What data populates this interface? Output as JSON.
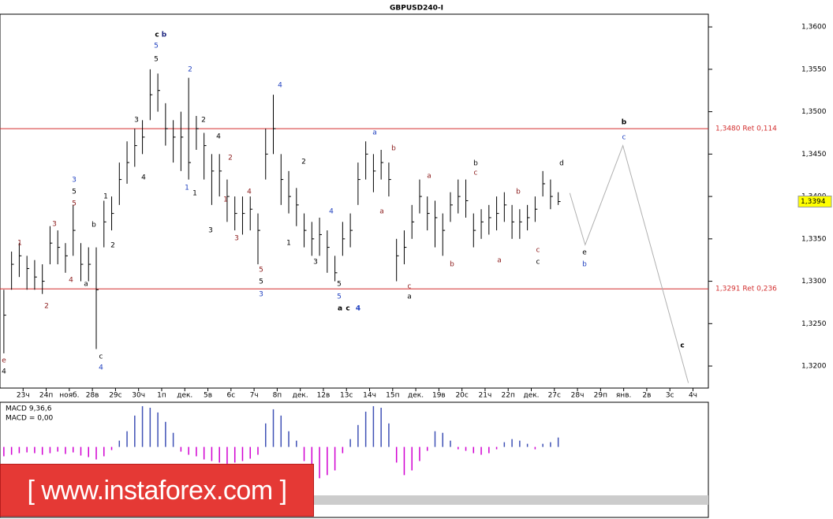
{
  "chart_data": {
    "type": "hlc",
    "title": "GBPUSD240-I",
    "color": "#000000",
    "xlim": [
      -0.5,
      91.5
    ],
    "xticks": [
      {
        "value": 2.5,
        "label": "23ч"
      },
      {
        "value": 5.5,
        "label": "24п"
      },
      {
        "value": 8.5,
        "label": "нояб."
      },
      {
        "value": 11.5,
        "label": "28в"
      },
      {
        "value": 14.5,
        "label": "29с"
      },
      {
        "value": 17.5,
        "label": "30ч"
      },
      {
        "value": 20.5,
        "label": "1п"
      },
      {
        "value": 23.5,
        "label": "дек."
      },
      {
        "value": 26.5,
        "label": "5в"
      },
      {
        "value": 29.5,
        "label": "6с"
      },
      {
        "value": 32.5,
        "label": "7ч"
      },
      {
        "value": 35.5,
        "label": "8п"
      },
      {
        "value": 38.5,
        "label": "дек."
      },
      {
        "value": 41.5,
        "label": "12в"
      },
      {
        "value": 44.5,
        "label": "13с"
      },
      {
        "value": 47.5,
        "label": "14ч"
      },
      {
        "value": 50.5,
        "label": "15п"
      },
      {
        "value": 53.5,
        "label": "дек."
      },
      {
        "value": 56.5,
        "label": "19в"
      },
      {
        "value": 59.5,
        "label": "20с"
      },
      {
        "value": 62.5,
        "label": "21ч"
      },
      {
        "value": 65.5,
        "label": "22п"
      },
      {
        "value": 68.5,
        "label": "дек."
      },
      {
        "value": 71.5,
        "label": "27с"
      },
      {
        "value": 74.5,
        "label": "28ч"
      },
      {
        "value": 77.5,
        "label": "29п"
      },
      {
        "value": 80.5,
        "label": "янв."
      },
      {
        "value": 83.5,
        "label": "2в"
      },
      {
        "value": 86.5,
        "label": "3с"
      },
      {
        "value": 89.5,
        "label": "4ч"
      }
    ],
    "ylim": [
      1.3174,
      1.3615
    ],
    "yticks": [
      {
        "value": 1.32,
        "label": "1,3200"
      },
      {
        "value": 1.325,
        "label": "1,3250"
      },
      {
        "value": 1.33,
        "label": "1,3300"
      },
      {
        "value": 1.335,
        "label": "1,3350"
      },
      {
        "value": 1.34,
        "label": "1,3400"
      },
      {
        "value": 1.345,
        "label": "1,3450"
      },
      {
        "value": 1.35,
        "label": "1,3500"
      },
      {
        "value": 1.355,
        "label": "1,3550"
      },
      {
        "value": 1.36,
        "label": "1,3600"
      }
    ],
    "high": [
      1.329,
      1.3335,
      1.3345,
      1.333,
      1.3325,
      1.332,
      1.3365,
      1.336,
      1.3345,
      1.339,
      1.3345,
      1.334,
      1.334,
      1.3395,
      1.34,
      1.344,
      1.3465,
      1.348,
      1.349,
      1.355,
      1.3545,
      1.351,
      1.349,
      1.35,
      1.354,
      1.3495,
      1.3475,
      1.345,
      1.345,
      1.342,
      1.34,
      1.34,
      1.34,
      1.338,
      1.348,
      1.352,
      1.345,
      1.343,
      1.341,
      1.338,
      1.337,
      1.3375,
      1.336,
      1.333,
      1.337,
      1.338,
      1.344,
      1.3465,
      1.345,
      1.3455,
      1.344,
      1.335,
      1.336,
      1.339,
      1.342,
      1.34,
      1.3395,
      1.338,
      1.3405,
      1.342,
      1.342,
      1.338,
      1.3385,
      1.339,
      1.34,
      1.3405,
      1.339,
      1.3385,
      1.339,
      1.34,
      1.343,
      1.342,
      1.3405
    ],
    "low": [
      1.3215,
      1.329,
      1.3305,
      1.329,
      1.329,
      1.3285,
      1.332,
      1.332,
      1.331,
      1.333,
      1.33,
      1.33,
      1.322,
      1.334,
      1.336,
      1.339,
      1.3415,
      1.3435,
      1.345,
      1.349,
      1.35,
      1.346,
      1.344,
      1.343,
      1.342,
      1.3455,
      1.342,
      1.339,
      1.34,
      1.337,
      1.336,
      1.3355,
      1.336,
      1.332,
      1.342,
      1.345,
      1.339,
      1.338,
      1.3365,
      1.334,
      1.333,
      1.333,
      1.331,
      1.33,
      1.333,
      1.334,
      1.339,
      1.342,
      1.3405,
      1.342,
      1.34,
      1.33,
      1.332,
      1.335,
      1.338,
      1.336,
      1.334,
      1.333,
      1.337,
      1.338,
      1.3375,
      1.334,
      1.335,
      1.3355,
      1.336,
      1.337,
      1.335,
      1.335,
      1.336,
      1.337,
      1.34,
      1.3385,
      1.339
    ],
    "close": [
      1.326,
      1.332,
      1.333,
      1.3315,
      1.3305,
      1.33,
      1.3345,
      1.334,
      1.333,
      1.336,
      1.332,
      1.332,
      1.329,
      1.337,
      1.338,
      1.342,
      1.344,
      1.346,
      1.347,
      1.352,
      1.3525,
      1.348,
      1.347,
      1.347,
      1.344,
      1.348,
      1.346,
      1.343,
      1.343,
      1.34,
      1.338,
      1.338,
      1.3385,
      1.336,
      1.345,
      1.348,
      1.342,
      1.34,
      1.339,
      1.336,
      1.335,
      1.3355,
      1.334,
      1.331,
      1.335,
      1.336,
      1.342,
      1.345,
      1.343,
      1.344,
      1.342,
      1.333,
      1.334,
      1.337,
      1.34,
      1.338,
      1.3375,
      1.336,
      1.339,
      1.34,
      1.3395,
      1.336,
      1.337,
      1.3375,
      1.338,
      1.339,
      1.337,
      1.337,
      1.3375,
      1.3385,
      1.3415,
      1.34,
      1.3394
    ],
    "last_price": {
      "value": 1.3394,
      "label": "1,3394"
    },
    "levels": [
      {
        "value": 1.348,
        "label": "1,3480 Ret 0,114",
        "color": "#d32f2f"
      },
      {
        "value": 1.3291,
        "label": "1,3291 Ret 0,236",
        "color": "#d32f2f"
      }
    ],
    "forecast": {
      "color": "#b0b0b0",
      "x": [
        73.5,
        75.5,
        80.4,
        88.9
      ],
      "values": [
        1.3404,
        1.3343,
        1.346,
        1.318
      ]
    },
    "macd_label": "MACD 9,36,6",
    "macd_value_label": "MACD = 0,00",
    "macd_ylim": [
      -0.009,
      0.0057
    ],
    "macd_up_color": "#3f51b5",
    "macd_down_color": "#d100d1",
    "macd": [
      -0.0012,
      -0.001,
      -0.0008,
      -0.0007,
      -0.0008,
      -0.001,
      -0.0008,
      -0.0006,
      -0.0009,
      -0.0007,
      -0.0011,
      -0.0013,
      -0.0016,
      -0.0012,
      -0.0004,
      0.0008,
      0.002,
      0.004,
      0.0052,
      0.005,
      0.0044,
      0.0032,
      0.0018,
      -0.0006,
      -0.001,
      -0.0012,
      -0.0016,
      -0.0018,
      -0.002,
      -0.0022,
      -0.002,
      -0.0018,
      -0.0015,
      -0.001,
      0.003,
      0.0048,
      0.004,
      0.002,
      0.0008,
      -0.0018,
      -0.003,
      -0.004,
      -0.0036,
      -0.003,
      -0.0008,
      0.001,
      0.0028,
      0.0045,
      0.0052,
      0.005,
      0.003,
      -0.002,
      -0.0036,
      -0.003,
      -0.0018,
      -0.0005,
      0.002,
      0.0018,
      0.0008,
      -0.0003,
      -0.0005,
      -0.0008,
      -0.001,
      -0.0008,
      -0.0003,
      0.0006,
      0.001,
      0.0008,
      0.0004,
      -0.0003,
      0.0004,
      0.0006,
      0.0012
    ],
    "logo": "[  www.instaforex.com ]",
    "annotations": [
      {
        "text": "c",
        "color": "#000"
      },
      {
        "text": "b",
        "color": "#1a237e"
      },
      {
        "text": "5",
        "color": "#1e3fbf"
      },
      {
        "text": "5",
        "color": "#000"
      },
      {
        "text": "2",
        "color": "#1e3fbf"
      },
      {
        "text": "4",
        "color": "#1e3fbf"
      },
      {
        "text": "3",
        "color": "#000"
      },
      {
        "text": "2",
        "color": "#000"
      },
      {
        "text": "4",
        "color": "#000"
      },
      {
        "text": "2",
        "color": "#8b1a1a"
      },
      {
        "text": "1",
        "color": "#1e3fbf"
      },
      {
        "text": "1",
        "color": "#000"
      },
      {
        "text": "4",
        "color": "#000"
      },
      {
        "text": "1",
        "color": "#000"
      },
      {
        "text": "3",
        "color": "#1e3fbf"
      },
      {
        "text": "5",
        "color": "#000"
      },
      {
        "text": "5",
        "color": "#8b1a1a"
      },
      {
        "text": "b",
        "color": "#000"
      },
      {
        "text": "3",
        "color": "#8b1a1a"
      },
      {
        "text": "1",
        "color": "#8b1a1a"
      },
      {
        "text": "2",
        "color": "#000"
      },
      {
        "text": "1",
        "color": "#8b1a1a"
      },
      {
        "text": "3",
        "color": "#000"
      },
      {
        "text": "3",
        "color": "#8b1a1a"
      },
      {
        "text": "4",
        "color": "#8b1a1a"
      },
      {
        "text": "5",
        "color": "#8b1a1a"
      },
      {
        "text": "5",
        "color": "#000"
      },
      {
        "text": "3",
        "color": "#1e3fbf"
      },
      {
        "text": "2",
        "color": "#000"
      },
      {
        "text": "1",
        "color": "#000"
      },
      {
        "text": "4",
        "color": "#1e3fbf"
      },
      {
        "text": "3",
        "color": "#000"
      },
      {
        "text": "5",
        "color": "#000"
      },
      {
        "text": "5",
        "color": "#1e3fbf"
      },
      {
        "text": "a",
        "color": "#000"
      },
      {
        "text": "c",
        "color": "#000"
      },
      {
        "text": "4",
        "color": "#1e3fbf"
      },
      {
        "text": "4",
        "color": "#8b1a1a"
      },
      {
        "text": "a",
        "color": "#000"
      },
      {
        "text": "2",
        "color": "#8b1a1a"
      },
      {
        "text": "c",
        "color": "#000"
      },
      {
        "text": "4",
        "color": "#1e3fbf"
      },
      {
        "text": "e",
        "color": "#8b1a1a"
      },
      {
        "text": "4",
        "color": "#000"
      },
      {
        "text": "a",
        "color": "#1e3fbf"
      },
      {
        "text": "b",
        "color": "#8b1a1a"
      },
      {
        "text": "a",
        "color": "#8b1a1a"
      },
      {
        "text": "c",
        "color": "#8b1a1a"
      },
      {
        "text": "a",
        "color": "#000"
      },
      {
        "text": "a",
        "color": "#8b1a1a"
      },
      {
        "text": "b",
        "color": "#8b1a1a"
      },
      {
        "text": "b",
        "color": "#000"
      },
      {
        "text": "c",
        "color": "#8b1a1a"
      },
      {
        "text": "a",
        "color": "#8b1a1a"
      },
      {
        "text": "b",
        "color": "#8b1a1a"
      },
      {
        "text": "c",
        "color": "#8b1a1a"
      },
      {
        "text": "c",
        "color": "#000"
      },
      {
        "text": "d",
        "color": "#000"
      },
      {
        "text": "b",
        "color": "#000"
      },
      {
        "text": "c",
        "color": "#1e3fbf"
      },
      {
        "text": "e",
        "color": "#000"
      },
      {
        "text": "b",
        "color": "#1e3fbf"
      },
      {
        "text": "c",
        "color": "#000"
      }
    ]
  }
}
